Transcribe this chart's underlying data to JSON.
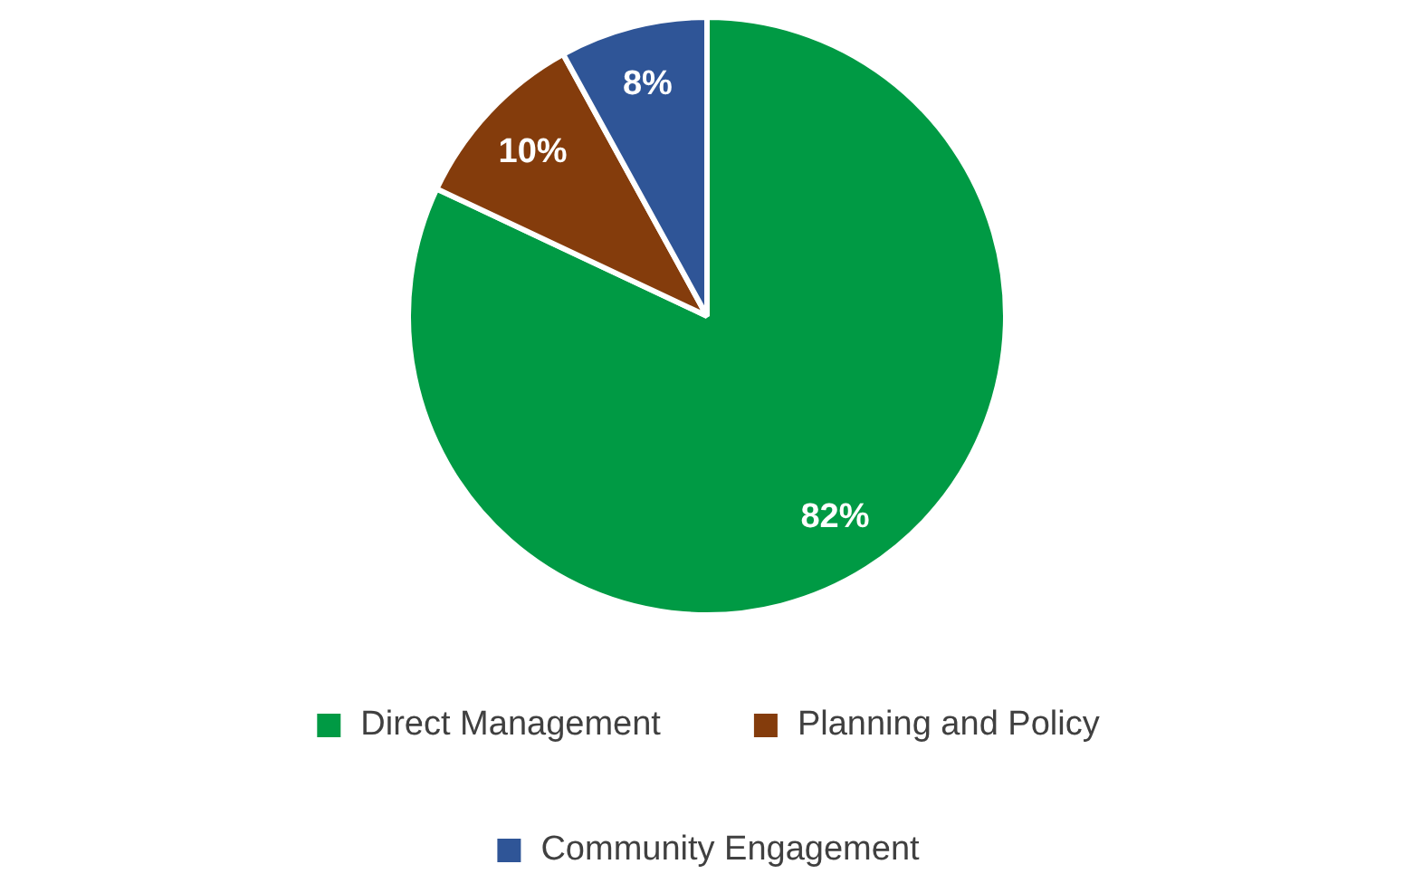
{
  "chart_data": {
    "type": "pie",
    "categories": [
      "Direct Management",
      "Planning and Policy",
      "Community Engagement"
    ],
    "values": [
      82,
      10,
      8
    ],
    "colors": [
      "#009a44",
      "#843c0c",
      "#2f5597"
    ],
    "value_labels": [
      "82%",
      "10%",
      "8%"
    ],
    "legend": "bottom"
  }
}
